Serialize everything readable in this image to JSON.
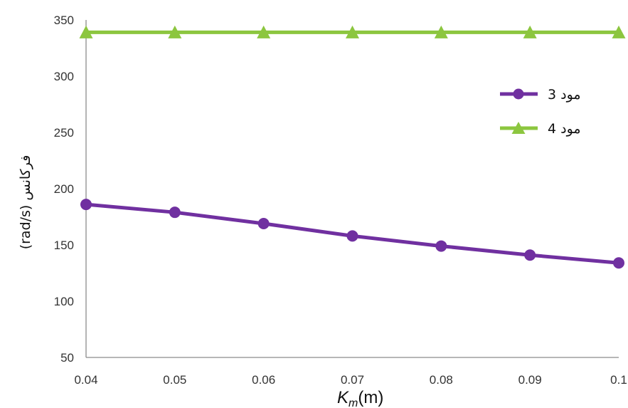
{
  "chart_data": {
    "type": "line",
    "x": [
      0.04,
      0.05,
      0.06,
      0.07,
      0.08,
      0.09,
      0.1
    ],
    "x_tick_labels": [
      "0.04",
      "0.05",
      "0.06",
      "0.07",
      "0.08",
      "0.09",
      "0.1"
    ],
    "y_tick_labels": [
      "50",
      "100",
      "150",
      "200",
      "250",
      "300",
      "350"
    ],
    "xlim": [
      0.04,
      0.1
    ],
    "ylim": [
      50,
      350
    ],
    "y_ticks": [
      50,
      100,
      150,
      200,
      250,
      300,
      350
    ],
    "xlabel": {
      "main": "K",
      "sub": "m",
      "unit": "(m)"
    },
    "ylabel": "(rad/s)  فرکانس",
    "grid": false,
    "legend_position": "right",
    "series": [
      {
        "name": "مود 3",
        "marker": "circle",
        "color": "#7030a0",
        "values": [
          186,
          179,
          169,
          158,
          149,
          141,
          134
        ]
      },
      {
        "name": "مود 4",
        "marker": "triangle",
        "color": "#8cc63f",
        "values": [
          339,
          339,
          339,
          339,
          339,
          339,
          339
        ]
      }
    ]
  }
}
